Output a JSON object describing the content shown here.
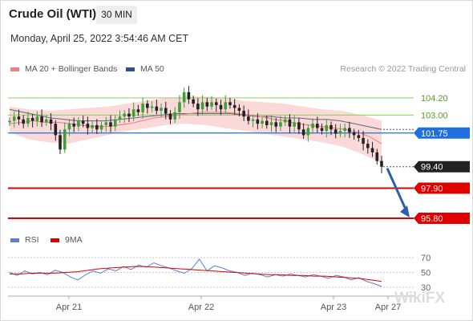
{
  "header": {
    "title": "Crude Oil (WTI)",
    "timeframe": "30 MIN",
    "datetime": "Monday, April 25, 2022 3:54:46 AM CET"
  },
  "legend_main": [
    {
      "label": "MA 20 + Bollinger Bands",
      "color": "#f08080"
    },
    {
      "label": "MA 50",
      "color": "#2f4f8f"
    }
  ],
  "legend_rsi": [
    {
      "label": "RSI",
      "color": "#5b7fd6"
    },
    {
      "label": "9MA",
      "color": "#e00000"
    }
  ],
  "credit": "Research © 2022 Trading Central",
  "watermark": "WikiFX",
  "colors": {
    "resistance": "#8fcf5a",
    "pivot": "#1f6fe0",
    "support": "#e00000",
    "last": "#222222",
    "bull": "#3d9e3d",
    "bear": "#222222",
    "bands": "#fbd9d9",
    "ma20": "#f08080",
    "ma50": "#6b6f8f"
  },
  "chart_data": [
    {
      "type": "candlestick",
      "x_tick_labels": [
        "Apr 21",
        "Apr 22",
        "Apr 23",
        "Apr 27"
      ],
      "ylim": [
        94.5,
        107
      ],
      "price_levels": [
        {
          "label": "104.20",
          "value": 104.2,
          "kind": "resistance"
        },
        {
          "label": "103.00",
          "value": 103.0,
          "kind": "resistance"
        },
        {
          "label": "101.75",
          "value": 101.75,
          "kind": "pivot"
        },
        {
          "label": "99.40",
          "value": 99.4,
          "kind": "last"
        },
        {
          "label": "97.90",
          "value": 97.9,
          "kind": "support"
        },
        {
          "label": "95.80",
          "value": 95.8,
          "kind": "support"
        }
      ],
      "projection": {
        "from": 99.4,
        "to": 95.8
      },
      "close_path": [
        102.6,
        102.9,
        102.7,
        102.4,
        102.8,
        102.6,
        102.9,
        102.5,
        102.7,
        102.4,
        101.6,
        100.6,
        102.0,
        102.4,
        102.2,
        102.6,
        102.4,
        102.1,
        102.3,
        102.0,
        102.3,
        102.5,
        102.2,
        102.7,
        102.9,
        103.1,
        102.9,
        103.4,
        103.2,
        103.8,
        103.5,
        103.6,
        103.3,
        103.5,
        103.1,
        102.7,
        103.2,
        103.9,
        104.6,
        104.1,
        103.8,
        103.4,
        103.9,
        103.6,
        103.9,
        103.7,
        103.4,
        103.9,
        103.7,
        103.5,
        103.3,
        102.9,
        102.6,
        102.7,
        102.4,
        102.6,
        102.3,
        102.5,
        102.2,
        102.5,
        102.7,
        102.2,
        102.5,
        102.0,
        101.6,
        102.1,
        102.4,
        102.1,
        101.9,
        102.3,
        102.0,
        101.7,
        101.9,
        102.1,
        101.8,
        101.6,
        101.4,
        101.0,
        100.7,
        100.4,
        99.8,
        99.4
      ],
      "ma20": [
        102.4,
        102.5,
        102.6,
        102.5,
        102.5,
        102.4,
        102.3,
        102.2,
        102.2,
        102.3,
        102.4,
        102.6,
        102.8,
        102.9,
        103.0,
        103.1,
        103.2,
        103.2,
        103.2,
        103.1,
        103.0,
        102.9,
        102.7,
        102.6,
        102.4,
        102.3,
        102.2,
        102.1,
        102.0,
        101.8,
        101.5,
        101.0
      ],
      "ma50": [
        103.4,
        103.2,
        103.0,
        102.8,
        102.7,
        102.6,
        102.6,
        102.6,
        102.7,
        102.8,
        102.9,
        103.0,
        103.1,
        103.1,
        103.1,
        103.1,
        103.1,
        103.0,
        102.9,
        102.9,
        102.8,
        102.8,
        102.7,
        102.7,
        102.6,
        102.4,
        102.2,
        102.0
      ],
      "bb_upper": [
        103.6,
        103.4,
        103.3,
        103.4,
        103.5,
        103.6,
        103.8,
        104.0,
        104.2,
        104.3,
        104.3,
        104.2,
        104.0,
        103.9,
        103.8,
        103.6,
        103.4,
        103.3,
        103.0,
        102.6
      ],
      "bb_lower": [
        101.8,
        101.3,
        101.1,
        101.0,
        101.3,
        101.6,
        101.9,
        102.1,
        102.3,
        102.4,
        102.3,
        102.1,
        101.9,
        101.7,
        101.5,
        101.3,
        101.1,
        100.8,
        100.3,
        99.6
      ]
    },
    {
      "type": "line",
      "title": "RSI",
      "y_ticks": [
        70,
        50,
        30
      ],
      "ylim": [
        20,
        75
      ],
      "series": [
        {
          "name": "RSI",
          "values": [
            50,
            46,
            52,
            48,
            50,
            47,
            53,
            50,
            44,
            40,
            47,
            52,
            49,
            55,
            52,
            58,
            54,
            60,
            57,
            63,
            59,
            56,
            52,
            49,
            55,
            68,
            52,
            59,
            56,
            52,
            50,
            46,
            49,
            47,
            44,
            47,
            45,
            48,
            46,
            44,
            47,
            45,
            42,
            46,
            44,
            40,
            43,
            38,
            35,
            31
          ]
        },
        {
          "name": "9MA",
          "values": [
            48,
            48,
            49,
            49,
            49,
            50,
            51,
            53,
            55,
            56,
            57,
            58,
            58,
            57,
            56,
            55,
            54,
            53,
            52,
            51,
            50,
            49,
            48,
            47,
            47,
            46,
            46,
            45,
            45,
            44,
            43,
            42,
            40,
            38
          ]
        }
      ]
    }
  ]
}
